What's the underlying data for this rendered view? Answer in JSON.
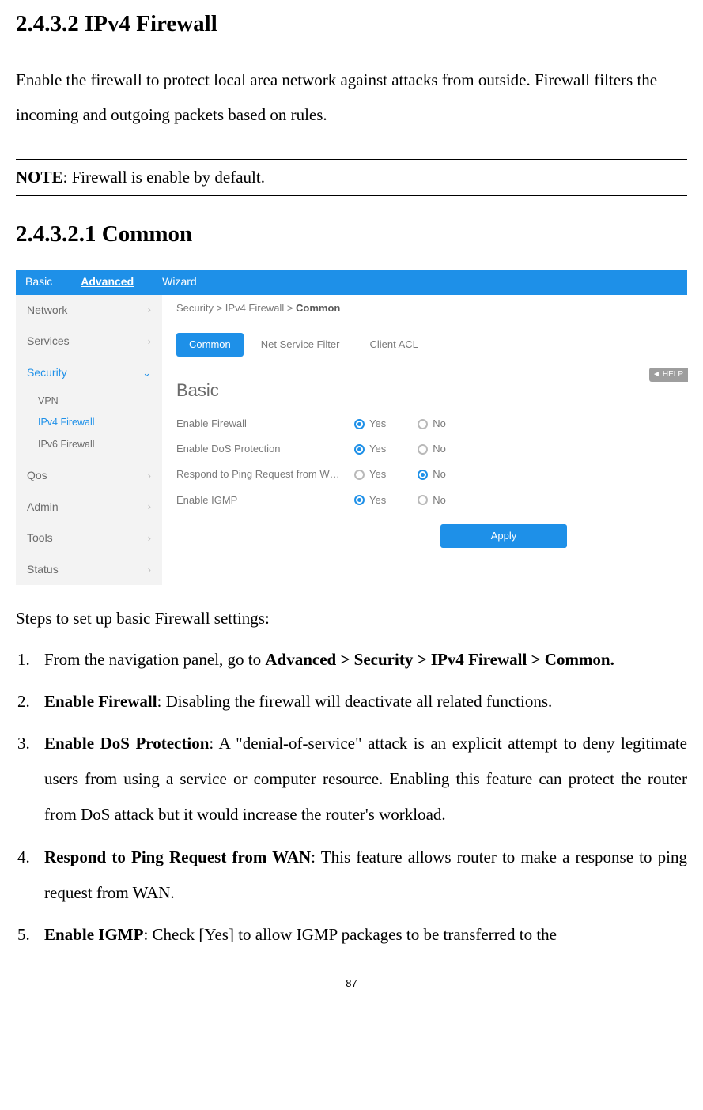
{
  "heading1": "2.4.3.2 IPv4 Firewall",
  "intro": "Enable the firewall to protect local area network against attacks from outside. Firewall filters the incoming and outgoing packets based on rules.",
  "note_label": "NOTE",
  "note_text": ": Firewall is enable by default.",
  "heading2": "2.4.3.2.1 Common",
  "topbar": {
    "basic": "Basic",
    "advanced": "Advanced",
    "wizard": "Wizard"
  },
  "sidebar": {
    "items": [
      {
        "label": "Network"
      },
      {
        "label": "Services"
      },
      {
        "label": "Security",
        "active": true,
        "expanded": true,
        "sub": [
          {
            "label": "VPN"
          },
          {
            "label": "IPv4 Firewall",
            "sel": true
          },
          {
            "label": "IPv6 Firewall"
          }
        ]
      },
      {
        "label": "Qos"
      },
      {
        "label": "Admin"
      },
      {
        "label": "Tools"
      },
      {
        "label": "Status"
      }
    ]
  },
  "breadcrumb": {
    "a": "Security",
    "b": "IPv4 Firewall",
    "c": "Common",
    "sep": " > "
  },
  "tabs": {
    "common": "Common",
    "nsf": "Net Service Filter",
    "acl": "Client ACL"
  },
  "help": "HELP",
  "panel_title": "Basic",
  "rows": [
    {
      "label": "Enable Firewall",
      "yes": "Yes",
      "no": "No",
      "value": "yes"
    },
    {
      "label": "Enable DoS Protection",
      "yes": "Yes",
      "no": "No",
      "value": "yes"
    },
    {
      "label": "Respond to Ping Request from W…",
      "yes": "Yes",
      "no": "No",
      "value": "no"
    },
    {
      "label": "Enable IGMP",
      "yes": "Yes",
      "no": "No",
      "value": "yes"
    }
  ],
  "apply": "Apply",
  "steps_intro": "Steps to set up basic Firewall settings:",
  "steps": {
    "s1a": "From the navigation panel, go to ",
    "s1b": "Advanced > Security > IPv4 Firewall > Common.",
    "s2a": "Enable Firewall",
    "s2b": ": Disabling the firewall will deactivate all related functions.",
    "s3a": "Enable DoS Protection",
    "s3b": ": A \"denial-of-service\" attack is an explicit attempt to deny legitimate users from using a service or computer resource. Enabling this feature can protect the router from DoS attack but it would increase the router's workload.",
    "s4a": "Respond to Ping Request from WAN",
    "s4b": ": This feature allows router to make a response to ping request from WAN.",
    "s5a": "Enable IGMP",
    "s5b": ": Check [Yes] to allow IGMP packages to be transferred to the"
  },
  "page_number": "87",
  "colors": {
    "primary": "#1e90e8",
    "sidebar_bg": "#f3f3f3",
    "text_muted": "#7a7a7a",
    "radio_off": "#b9b9b9"
  }
}
